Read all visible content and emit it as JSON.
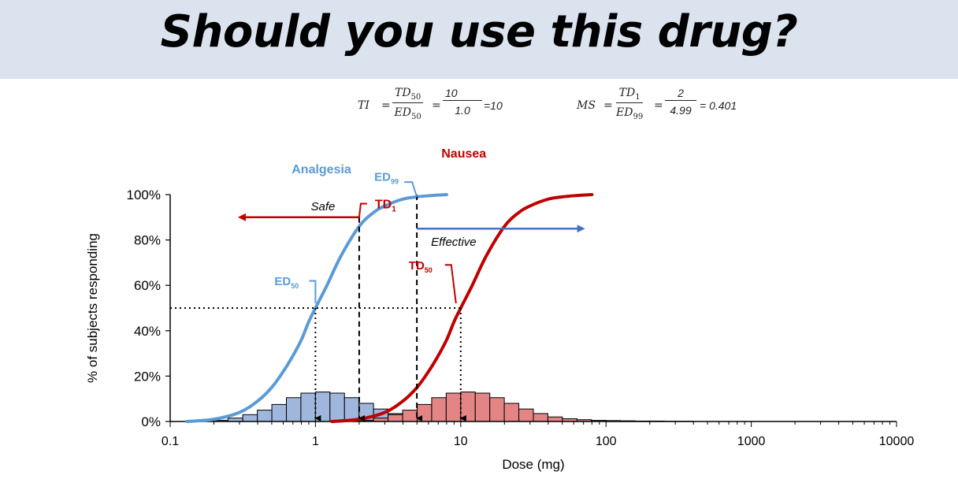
{
  "title": "Should you use this drug?",
  "formulas": {
    "ti": {
      "lhs": "TI",
      "eq": "=",
      "num_sym": "TD",
      "num_sub": "50",
      "den_sym": "ED",
      "den_sub": "50",
      "num_val": "10",
      "den_val": "1.0",
      "result": "=10"
    },
    "ms": {
      "lhs": "MS",
      "eq": "=",
      "num_sym": "TD",
      "num_sub": "1",
      "den_sym": "ED",
      "den_sub": "99",
      "num_val": "2",
      "den_val": "4.99",
      "result": "= 0.401"
    }
  },
  "annotations": {
    "analgesia": "Analgesia",
    "nausea": "Nausea",
    "safe": "Safe",
    "effective": "Effective",
    "ed50": {
      "base": "ED",
      "sub": "50"
    },
    "ed99": {
      "base": "ED",
      "sub": "99"
    },
    "td1": {
      "base": "TD",
      "sub": "1"
    },
    "td50": {
      "base": "TD",
      "sub": "50"
    }
  },
  "colors": {
    "analgesia": "#5b9bd5",
    "nausea": "#c00000",
    "analgesia_bar": "#9fb6dd",
    "nausea_bar": "#e38585",
    "effective_arrow": "#4472c4",
    "safe_arrow": "#c00000",
    "title_band": "#dbe3ef"
  },
  "chart_data": {
    "type": "line",
    "title": "",
    "xlabel": "Dose (mg)",
    "ylabel": "% of subjects responding",
    "xscale": "log",
    "xlim": [
      0.1,
      10000
    ],
    "ylim": [
      0,
      1
    ],
    "x_ticks": [
      {
        "value": 0.1,
        "label": "0.1"
      },
      {
        "value": 1,
        "label": "1"
      },
      {
        "value": 10,
        "label": "10"
      },
      {
        "value": 100,
        "label": "100"
      },
      {
        "value": 1000,
        "label": "1000"
      },
      {
        "value": 10000,
        "label": "10000"
      }
    ],
    "y_ticks": [
      {
        "value": 0,
        "label": "0%"
      },
      {
        "value": 0.2,
        "label": "20%"
      },
      {
        "value": 0.4,
        "label": "40%"
      },
      {
        "value": 0.6,
        "label": "60%"
      },
      {
        "value": 0.8,
        "label": "80%"
      },
      {
        "value": 1.0,
        "label": "100%"
      }
    ],
    "series": [
      {
        "name": "Analgesia",
        "kind": "cumulative",
        "x": [
          0.13,
          0.2,
          0.3,
          0.4,
          0.5,
          0.6,
          0.7,
          0.8,
          0.9,
          1.0,
          1.2,
          1.5,
          2.0,
          2.5,
          3.0,
          4.0,
          5.0,
          6.0,
          8.0
        ],
        "y": [
          0.0,
          0.01,
          0.04,
          0.09,
          0.15,
          0.22,
          0.29,
          0.36,
          0.44,
          0.5,
          0.6,
          0.73,
          0.86,
          0.92,
          0.95,
          0.98,
          0.99,
          0.995,
          1.0
        ]
      },
      {
        "name": "Nausea",
        "kind": "cumulative",
        "x": [
          1.3,
          2.0,
          3.0,
          4.0,
          5.0,
          6.0,
          7.0,
          8.0,
          9.0,
          10.0,
          12.0,
          15.0,
          20.0,
          25.0,
          30.0,
          40.0,
          50.0,
          60.0,
          80.0
        ],
        "y": [
          0.0,
          0.01,
          0.04,
          0.09,
          0.15,
          0.22,
          0.29,
          0.36,
          0.44,
          0.5,
          0.6,
          0.73,
          0.86,
          0.92,
          0.95,
          0.98,
          0.99,
          0.995,
          1.0
        ]
      },
      {
        "name": "Analgesia",
        "kind": "histogram",
        "bins": [
          {
            "x0": 0.2,
            "x1": 0.25,
            "y": 0.005
          },
          {
            "x0": 0.25,
            "x1": 0.316,
            "y": 0.015
          },
          {
            "x0": 0.316,
            "x1": 0.398,
            "y": 0.03
          },
          {
            "x0": 0.398,
            "x1": 0.501,
            "y": 0.05
          },
          {
            "x0": 0.501,
            "x1": 0.631,
            "y": 0.075
          },
          {
            "x0": 0.631,
            "x1": 0.794,
            "y": 0.105
          },
          {
            "x0": 0.794,
            "x1": 1.0,
            "y": 0.125
          },
          {
            "x0": 1.0,
            "x1": 1.259,
            "y": 0.13
          },
          {
            "x0": 1.259,
            "x1": 1.585,
            "y": 0.125
          },
          {
            "x0": 1.585,
            "x1": 1.995,
            "y": 0.105
          },
          {
            "x0": 1.995,
            "x1": 2.512,
            "y": 0.08
          },
          {
            "x0": 2.512,
            "x1": 3.162,
            "y": 0.055
          },
          {
            "x0": 3.162,
            "x1": 3.981,
            "y": 0.035
          },
          {
            "x0": 3.981,
            "x1": 5.012,
            "y": 0.02
          },
          {
            "x0": 5.012,
            "x1": 6.31,
            "y": 0.01
          },
          {
            "x0": 6.31,
            "x1": 7.943,
            "y": 0.005
          }
        ]
      },
      {
        "name": "Nausea",
        "kind": "histogram",
        "bins": [
          {
            "x0": 2.0,
            "x1": 2.512,
            "y": 0.005
          },
          {
            "x0": 2.512,
            "x1": 3.162,
            "y": 0.015
          },
          {
            "x0": 3.162,
            "x1": 3.981,
            "y": 0.03
          },
          {
            "x0": 3.981,
            "x1": 5.012,
            "y": 0.05
          },
          {
            "x0": 5.012,
            "x1": 6.31,
            "y": 0.075
          },
          {
            "x0": 6.31,
            "x1": 7.943,
            "y": 0.105
          },
          {
            "x0": 7.943,
            "x1": 10.0,
            "y": 0.125
          },
          {
            "x0": 10.0,
            "x1": 12.59,
            "y": 0.13
          },
          {
            "x0": 12.59,
            "x1": 15.85,
            "y": 0.125
          },
          {
            "x0": 15.85,
            "x1": 19.95,
            "y": 0.105
          },
          {
            "x0": 19.95,
            "x1": 25.12,
            "y": 0.08
          },
          {
            "x0": 25.12,
            "x1": 31.62,
            "y": 0.055
          },
          {
            "x0": 31.62,
            "x1": 39.81,
            "y": 0.035
          },
          {
            "x0": 39.81,
            "x1": 50.12,
            "y": 0.02
          },
          {
            "x0": 50.12,
            "x1": 63.1,
            "y": 0.012
          },
          {
            "x0": 63.1,
            "x1": 79.43,
            "y": 0.008
          },
          {
            "x0": 79.43,
            "x1": 100.0,
            "y": 0.005
          },
          {
            "x0": 100.0,
            "x1": 125.9,
            "y": 0.004
          },
          {
            "x0": 125.9,
            "x1": 158.5,
            "y": 0.003
          },
          {
            "x0": 158.5,
            "x1": 199.5,
            "y": 0.002
          },
          {
            "x0": 199.5,
            "x1": 251.2,
            "y": 0.002
          },
          {
            "x0": 251.2,
            "x1": 316.2,
            "y": 0.001
          },
          {
            "x0": 316.2,
            "x1": 398.1,
            "y": 0.001
          }
        ]
      }
    ],
    "reference_lines": {
      "ed50": {
        "x": 1.0,
        "y": 0.5
      },
      "td50": {
        "x": 10.0,
        "y": 0.5
      },
      "td1": {
        "x": 2.0
      },
      "ed99": {
        "x": 4.99
      }
    },
    "arrows": {
      "safe": {
        "from_x": 2.0,
        "to_x": 0.3,
        "y": 0.9,
        "color": "red"
      },
      "effective": {
        "from_x": 4.99,
        "to_x": 70,
        "y": 0.85,
        "color": "blue"
      }
    }
  }
}
